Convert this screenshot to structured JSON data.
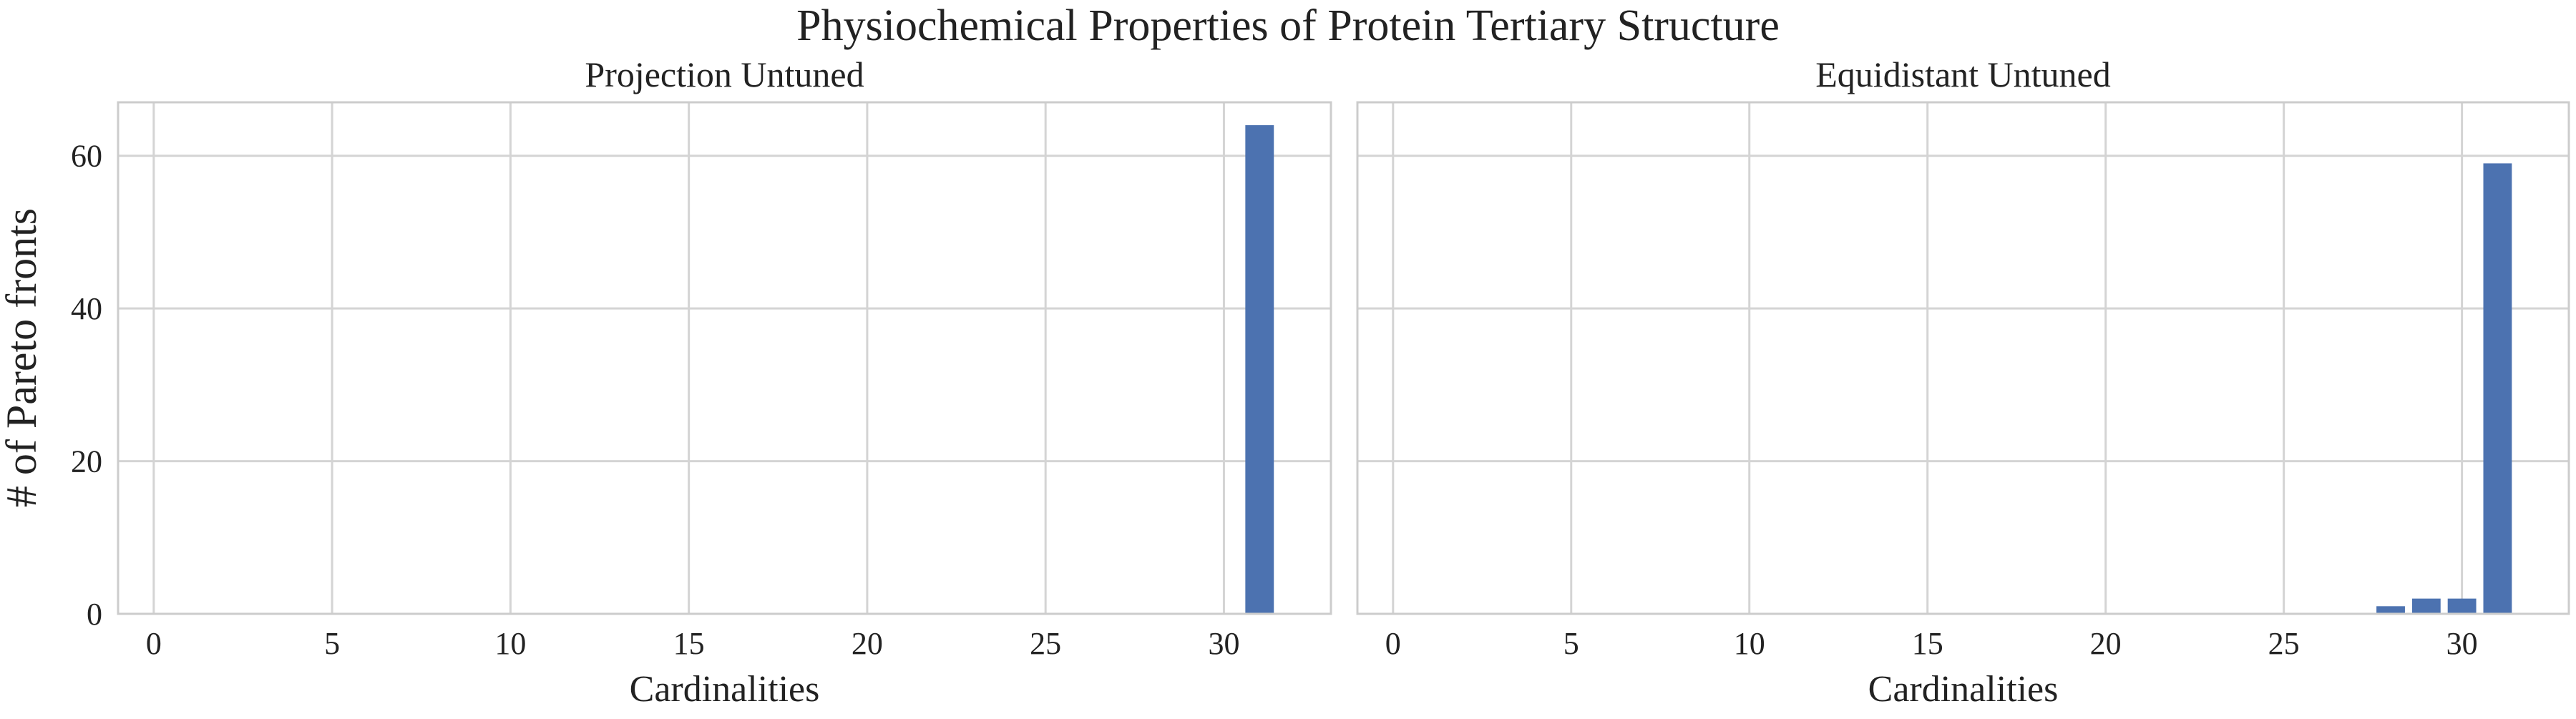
{
  "chart_data": {
    "type": "bar",
    "suptitle": "Physiochemical Properties of Protein Tertiary Structure",
    "ylabel": "# of Pareto fronts",
    "bar_color": "#4c72b0",
    "grid": true,
    "panels": [
      {
        "title": "Projection Untuned",
        "xlabel": "Cardinalities",
        "xlim": [
          -1,
          33
        ],
        "ylim": [
          0,
          67
        ],
        "xticks": [
          0,
          5,
          10,
          15,
          20,
          25,
          30
        ],
        "yticks": [
          0,
          20,
          40,
          60
        ],
        "x": [
          31
        ],
        "values": [
          64
        ]
      },
      {
        "title": "Equidistant Untuned",
        "xlabel": "Cardinalities",
        "xlim": [
          -1,
          33
        ],
        "ylim": [
          0,
          67
        ],
        "xticks": [
          0,
          5,
          10,
          15,
          20,
          25,
          30
        ],
        "yticks": [
          0,
          20,
          40,
          60
        ],
        "x": [
          28,
          29,
          30,
          31
        ],
        "values": [
          1,
          2,
          2,
          59
        ]
      }
    ]
  }
}
